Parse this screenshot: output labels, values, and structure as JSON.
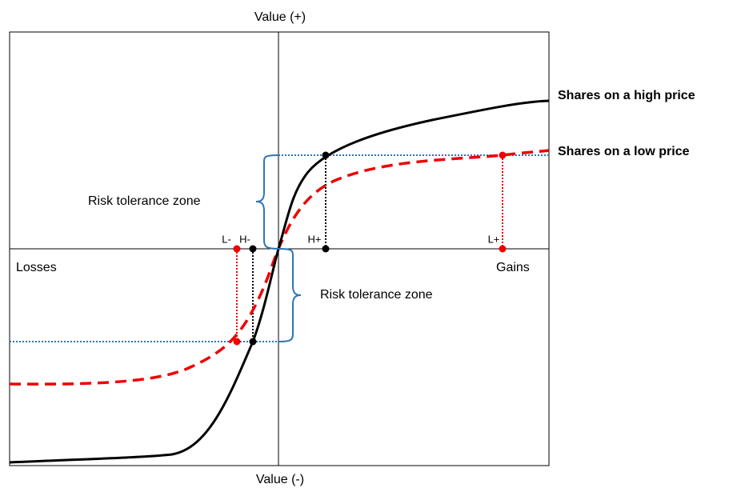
{
  "axes": {
    "top": "Value (+)",
    "bottom": "Value (-)",
    "left": "Losses",
    "right": "Gains"
  },
  "curves": {
    "high": "Shares on a high price",
    "low": "Shares on a low price"
  },
  "zones": {
    "upper": "Risk tolerance zone",
    "lower": "Risk tolerance zone"
  },
  "points": {
    "l_minus": "L-",
    "h_minus": "H-",
    "h_plus": "H+",
    "l_plus": "L+"
  }
}
